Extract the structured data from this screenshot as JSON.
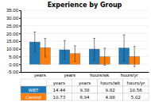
{
  "chart_data": {
    "type": "bar",
    "title": "Experience by Group",
    "categories": [
      "years",
      "years",
      "hours/wk",
      "hours/yr"
    ],
    "series": [
      {
        "name": "WBT",
        "values": [
          14.44,
          9.38,
          9.82,
          10.56
        ],
        "errors": [
          6.5,
          6.0,
          7.0,
          8.5
        ]
      },
      {
        "name": "Control",
        "values": [
          10.73,
          6.94,
          4.88,
          5.02
        ],
        "errors": [
          6.0,
          5.0,
          5.5,
          6.5
        ]
      }
    ],
    "ylim": [
      -5,
      35
    ],
    "yticks": [
      {
        "value": 35,
        "label": "35.00"
      },
      {
        "value": 30,
        "label": "30.00"
      },
      {
        "value": 25,
        "label": "25.00"
      },
      {
        "value": 20,
        "label": "20.00"
      },
      {
        "value": 15,
        "label": "15.00"
      },
      {
        "value": 10,
        "label": "10.00"
      },
      {
        "value": 5,
        "label": "5.00"
      },
      {
        "value": 0,
        "label": "0.00"
      },
      {
        "value": -5,
        "label": "-5.00"
      }
    ],
    "grid": true,
    "legend": "bottom",
    "data_labels": true
  }
}
